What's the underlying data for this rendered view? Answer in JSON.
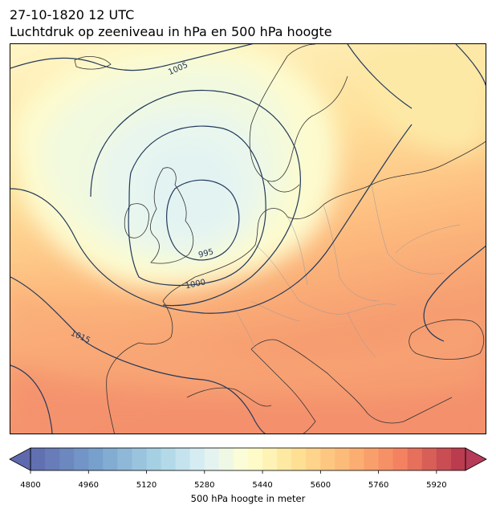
{
  "title_line1": "27-10-1820 12 UTC",
  "title_line2": "Luchtdruk op zeeniveau in hPa en 500 hPa hoogte",
  "isobar_labels": [
    "1005",
    "995",
    "1000",
    "1015"
  ],
  "colorbar": {
    "label": "500 hPa hoogte in meter",
    "ticks": [
      "4800",
      "4960",
      "5120",
      "5280",
      "5440",
      "5600",
      "5760",
      "5920"
    ],
    "min": 4800,
    "max": 6000,
    "step": 40,
    "colormap": "RdYlBu_r",
    "extend": "both"
  },
  "map": {
    "region": "Europe",
    "isobar_color": "#23395b",
    "coast_color": "#333333",
    "border_color": "#9a9a9a"
  }
}
